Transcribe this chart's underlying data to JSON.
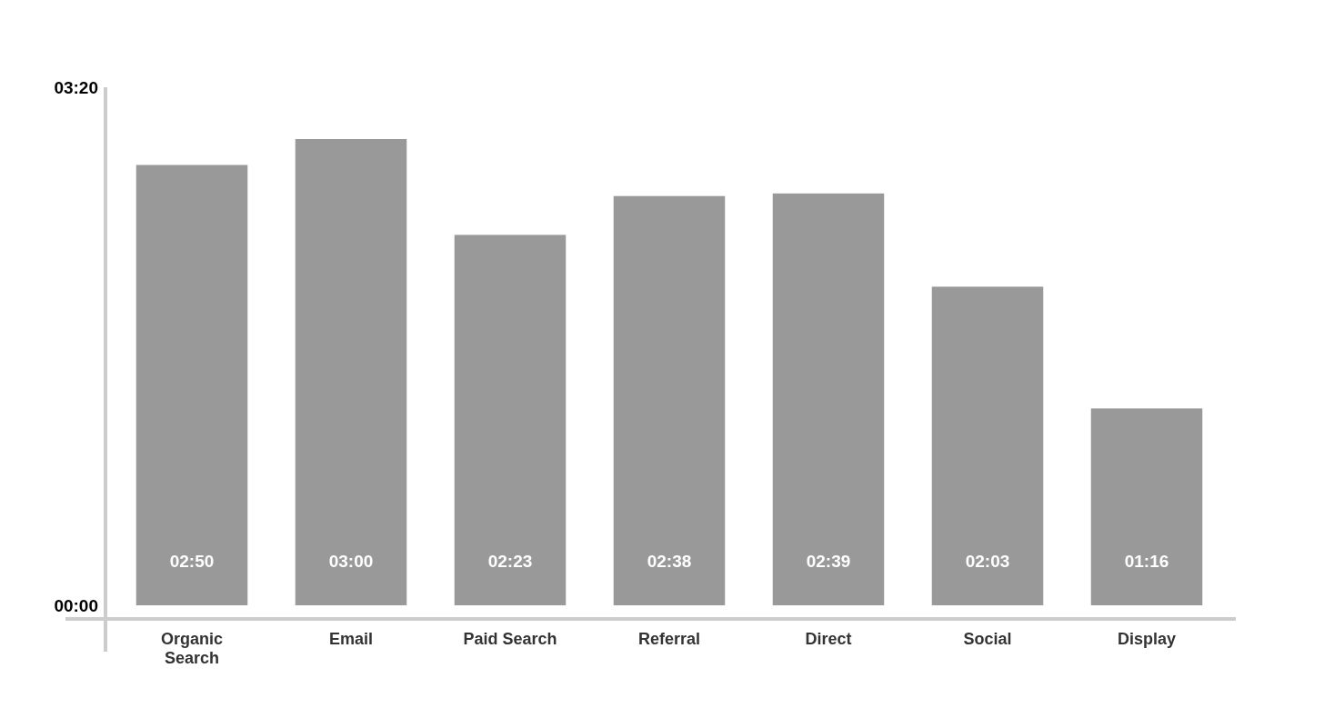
{
  "chart_data": {
    "type": "bar",
    "categories": [
      "Organic Search",
      "Email",
      "Paid Search",
      "Referral",
      "Direct",
      "Social",
      "Display"
    ],
    "values": [
      170,
      180,
      143,
      158,
      159,
      123,
      76
    ],
    "value_labels": [
      "02:50",
      "03:00",
      "02:23",
      "02:38",
      "02:39",
      "02:03",
      "01:16"
    ],
    "color": "#999999",
    "ylim": [
      0,
      200
    ],
    "yticks": [
      {
        "value": 0,
        "label": "00:00"
      },
      {
        "value": 200,
        "label": "03:20"
      }
    ],
    "grid": false
  }
}
